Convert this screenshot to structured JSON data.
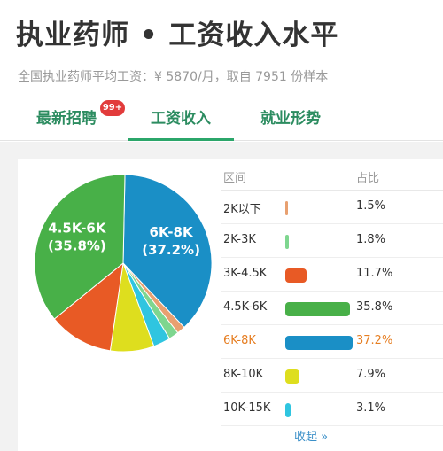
{
  "header": {
    "title": "执业药师 • 工资收入水平",
    "subtitle": "全国执业药师平均工资：¥ 5870/月，取自 7951 份样本"
  },
  "tabs": [
    {
      "label": "最新招聘",
      "badge": "99+"
    },
    {
      "label": "工资收入",
      "active": true
    },
    {
      "label": "就业形势"
    }
  ],
  "table": {
    "headers": {
      "range": "区间",
      "share": "占比"
    },
    "collapse_label": "收起 »"
  },
  "chart_data": {
    "type": "pie",
    "slices": [
      {
        "label": "2K以下",
        "percent_text": "1.5%",
        "value": 1.5,
        "color": "#e8a070"
      },
      {
        "label": "2K-3K",
        "percent_text": "1.8%",
        "value": 1.8,
        "color": "#7ed68f"
      },
      {
        "label": "3K-4.5K",
        "percent_text": "11.7%",
        "value": 11.7,
        "color": "#e85a25"
      },
      {
        "label": "4.5K-6K",
        "percent_text": "35.8%",
        "value": 35.8,
        "color": "#48b048",
        "pie_text": [
          "4.5K-6K",
          "(35.8%)"
        ]
      },
      {
        "label": "6K-8K",
        "percent_text": "37.2%",
        "value": 37.2,
        "color": "#1a8fc6",
        "highlight": true,
        "pie_text": [
          "6K-8K",
          "(37.2%)"
        ]
      },
      {
        "label": "8K-10K",
        "percent_text": "7.9%",
        "value": 7.9,
        "color": "#dede1e"
      },
      {
        "label": "10K-15K",
        "percent_text": "3.1%",
        "value": 3.1,
        "color": "#2fc5e0"
      }
    ]
  }
}
